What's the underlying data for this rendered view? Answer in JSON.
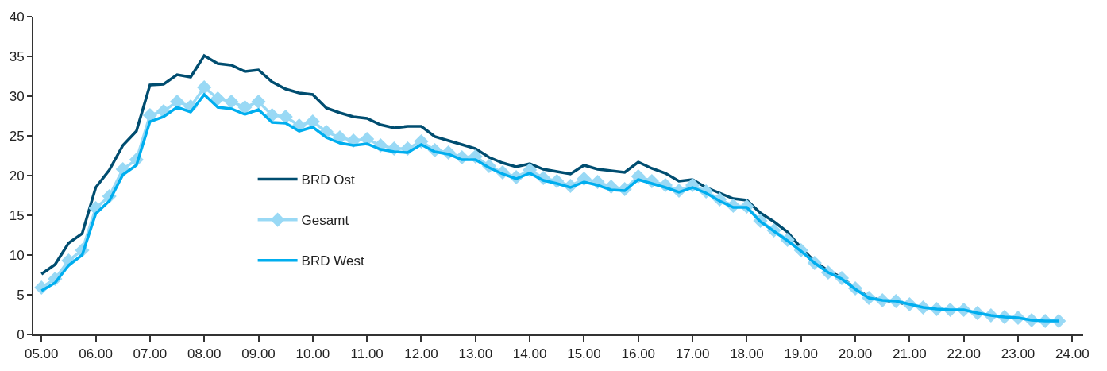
{
  "chart_data": {
    "type": "line",
    "xlim": [
      4.85,
      24.2
    ],
    "ylim": [
      0,
      40
    ],
    "yticks": [
      0,
      5,
      10,
      15,
      20,
      25,
      30,
      35,
      40
    ],
    "xticks": [
      {
        "value": 5,
        "label": "05.00"
      },
      {
        "value": 6,
        "label": "06.00"
      },
      {
        "value": 7,
        "label": "07.00"
      },
      {
        "value": 8,
        "label": "08.00"
      },
      {
        "value": 9,
        "label": "09.00"
      },
      {
        "value": 10,
        "label": "10.00"
      },
      {
        "value": 11,
        "label": "11.00"
      },
      {
        "value": 12,
        "label": "12.00"
      },
      {
        "value": 13,
        "label": "13.00"
      },
      {
        "value": 14,
        "label": "14.00"
      },
      {
        "value": 15,
        "label": "15.00"
      },
      {
        "value": 16,
        "label": "16.00"
      },
      {
        "value": 17,
        "label": "17.00"
      },
      {
        "value": 18,
        "label": "18.00"
      },
      {
        "value": 19,
        "label": "19.00"
      },
      {
        "value": 20,
        "label": "20.00"
      },
      {
        "value": 21,
        "label": "21.00"
      },
      {
        "value": 22,
        "label": "22.00"
      },
      {
        "value": 23,
        "label": "23.00"
      },
      {
        "value": 24,
        "label": "24.00"
      }
    ],
    "x": [
      5,
      5.25,
      5.5,
      5.75,
      6,
      6.25,
      6.5,
      6.75,
      7,
      7.25,
      7.5,
      7.75,
      8,
      8.25,
      8.5,
      8.75,
      9,
      9.25,
      9.5,
      9.75,
      10,
      10.25,
      10.5,
      10.75,
      11,
      11.25,
      11.5,
      11.75,
      12,
      12.25,
      12.5,
      12.75,
      13,
      13.25,
      13.5,
      13.75,
      14,
      14.25,
      14.5,
      14.75,
      15,
      15.25,
      15.5,
      15.75,
      16,
      16.25,
      16.5,
      16.75,
      17,
      17.25,
      17.5,
      17.75,
      18,
      18.25,
      18.5,
      18.75,
      19,
      19.25,
      19.5,
      19.75,
      20,
      20.25,
      20.5,
      20.75,
      21,
      21.25,
      21.5,
      21.75,
      22,
      22.25,
      22.5,
      22.75,
      23,
      23.25,
      23.5,
      23.75
    ],
    "legend": "left",
    "line_style": "solid",
    "series": [
      {
        "name": "BRD Ost",
        "color": "#004d70",
        "marker": "none",
        "values": [
          7.6,
          8.8,
          11.5,
          12.7,
          18.5,
          20.7,
          23.8,
          25.6,
          31.4,
          31.5,
          32.7,
          32.4,
          35.1,
          34.1,
          33.9,
          33.1,
          33.3,
          31.8,
          30.9,
          30.4,
          30.2,
          28.5,
          27.9,
          27.4,
          27.2,
          26.4,
          26.0,
          26.2,
          26.2,
          24.9,
          24.4,
          23.9,
          23.4,
          22.3,
          21.6,
          21.1,
          21.5,
          20.8,
          20.5,
          20.2,
          21.3,
          20.8,
          20.6,
          20.4,
          21.7,
          20.9,
          20.3,
          19.3,
          19.5,
          18.5,
          17.8,
          17.1,
          16.9,
          15.3,
          14.2,
          12.9,
          10.9,
          9.2,
          8.0,
          7.2,
          5.8,
          4.7,
          4.3,
          4.1,
          3.7,
          3.4,
          null,
          null,
          null,
          null,
          null,
          null,
          null,
          null,
          null,
          null
        ]
      },
      {
        "name": "Gesamt",
        "color": "#99d9f5",
        "marker": "diamond",
        "values": [
          5.9,
          7.0,
          9.3,
          10.6,
          15.9,
          17.4,
          20.8,
          22.0,
          27.6,
          28.1,
          29.3,
          28.7,
          31.1,
          29.7,
          29.3,
          28.6,
          29.3,
          27.6,
          27.4,
          26.3,
          26.8,
          25.5,
          24.8,
          24.4,
          24.6,
          23.8,
          23.4,
          23.4,
          24.3,
          23.2,
          22.9,
          22.3,
          22.4,
          21.2,
          20.4,
          19.8,
          20.7,
          19.7,
          19.3,
          18.7,
          19.6,
          19.2,
          18.6,
          18.3,
          19.9,
          19.3,
          18.8,
          18.1,
          18.8,
          18.0,
          17.0,
          16.2,
          16.1,
          14.3,
          13.1,
          11.9,
          10.6,
          9.0,
          7.8,
          7.1,
          5.8,
          4.6,
          4.3,
          4.2,
          3.8,
          3.4,
          3.2,
          3.1,
          3.1,
          2.7,
          2.4,
          2.2,
          2.1,
          1.8,
          1.7,
          1.7
        ]
      },
      {
        "name": "BRD West",
        "color": "#00aeef",
        "marker": "none",
        "values": [
          5.5,
          6.5,
          8.7,
          10.0,
          15.2,
          16.8,
          20.1,
          21.3,
          26.8,
          27.4,
          28.6,
          28.0,
          30.2,
          28.6,
          28.4,
          27.7,
          28.3,
          26.7,
          26.6,
          25.6,
          26.1,
          24.8,
          24.1,
          23.8,
          24.0,
          23.3,
          23.0,
          22.9,
          23.9,
          23.0,
          22.7,
          22.0,
          22.0,
          21.0,
          20.2,
          19.6,
          20.3,
          19.4,
          19.0,
          18.5,
          19.2,
          18.8,
          18.2,
          18.1,
          19.5,
          19.0,
          18.5,
          17.9,
          18.5,
          17.8,
          16.8,
          16.0,
          16.0,
          14.2,
          13.0,
          11.8,
          10.5,
          9.0,
          7.8,
          7.0,
          5.7,
          4.6,
          4.3,
          4.2,
          3.8,
          3.4,
          3.2,
          3.1,
          3.1,
          2.7,
          2.4,
          2.2,
          2.1,
          1.8,
          1.7,
          1.7
        ]
      }
    ]
  }
}
